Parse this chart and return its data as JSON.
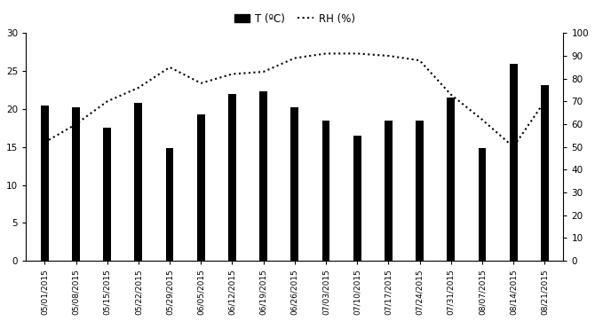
{
  "dates": [
    "05/01/2015",
    "05/08/2015",
    "05/15/2015",
    "05/22/2015",
    "05/29/2015",
    "06/05/2015",
    "06/12/2015",
    "06/19/2015",
    "06/26/2015",
    "07/03/2015",
    "07/10/2015",
    "07/17/2015",
    "07/24/2015",
    "07/31/2015",
    "08/07/2015",
    "08/14/2015",
    "08/21/2015"
  ],
  "bar_vals": [
    20.5,
    20.2,
    17.5,
    20.8,
    14.8,
    19.3,
    22.0,
    22.3,
    20.2,
    18.5,
    16.5,
    18.5,
    18.5,
    21.5,
    14.8,
    26.0,
    23.2
  ],
  "rh_vals": [
    52,
    60,
    70,
    76,
    85,
    78,
    82,
    83,
    89,
    91,
    91,
    90,
    88,
    73,
    62,
    50,
    70
  ],
  "bar_color": "#000000",
  "rh_color": "#000000",
  "bg_color": "#ffffff",
  "ylim_left": [
    0,
    30
  ],
  "ylim_right": [
    0,
    100
  ],
  "yticks_left": [
    0,
    5,
    10,
    15,
    20,
    25,
    30
  ],
  "yticks_right": [
    0,
    10,
    20,
    30,
    40,
    50,
    60,
    70,
    80,
    90,
    100
  ],
  "bar_width": 0.25,
  "legend_T": "T (ºC)",
  "legend_RH": "RH (%)"
}
